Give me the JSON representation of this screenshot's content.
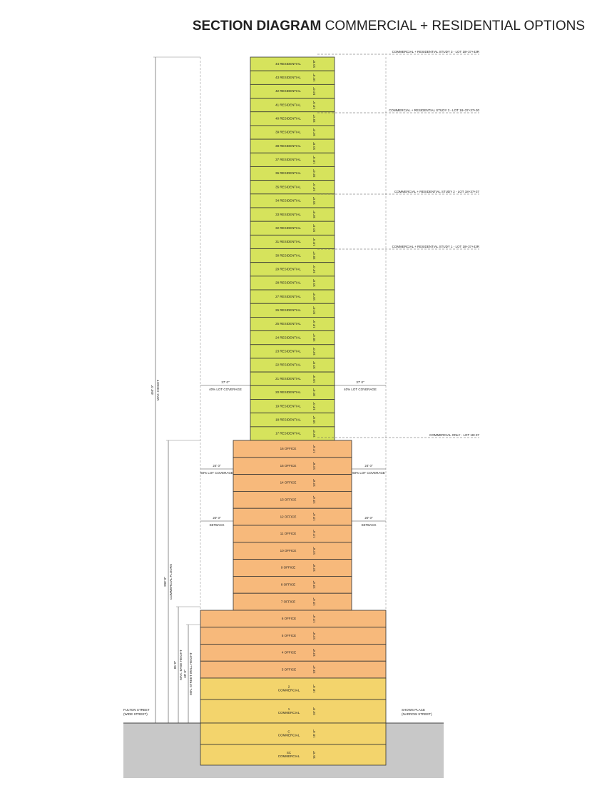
{
  "title": {
    "bold": "SECTION DIAGRAM",
    "rest": "COMMERCIAL + RESIDENTIAL OPTIONS"
  },
  "sections": [
    {
      "name": "residential",
      "floors": [
        {
          "label": [
            "44 RESIDENTIAL"
          ],
          "height": "10' 0\""
        },
        {
          "label": [
            "43 RESIDENTIAL"
          ],
          "height": "10' 0\""
        },
        {
          "label": [
            "42 RESIDENTIAL"
          ],
          "height": "10' 0\""
        },
        {
          "label": [
            "41 RESIDENTIAL"
          ],
          "height": "10' 0\""
        },
        {
          "label": [
            "40 RESIDENTIAL"
          ],
          "height": "10' 0\""
        },
        {
          "label": [
            "39 RESIDENTIAL"
          ],
          "height": "10' 0\""
        },
        {
          "label": [
            "38 RESIDENTIAL"
          ],
          "height": "10' 0\""
        },
        {
          "label": [
            "37 RESIDENTIAL"
          ],
          "height": "10' 0\""
        },
        {
          "label": [
            "36 RESIDENTIAL"
          ],
          "height": "10' 0\""
        },
        {
          "label": [
            "35 RESIDENTIAL"
          ],
          "height": "10' 0\""
        },
        {
          "label": [
            "34 RESIDENTIAL"
          ],
          "height": "10' 0\""
        },
        {
          "label": [
            "33 RESIDENTIAL"
          ],
          "height": "10' 0\""
        },
        {
          "label": [
            "32 RESIDENTIAL"
          ],
          "height": "10' 0\""
        },
        {
          "label": [
            "31 RESIDENTIAL"
          ],
          "height": "10' 0\""
        },
        {
          "label": [
            "30 RESIDENTIAL"
          ],
          "height": "10' 0\""
        },
        {
          "label": [
            "29 RESIDENTIAL"
          ],
          "height": "10' 0\""
        },
        {
          "label": [
            "28 RESIDENTIAL"
          ],
          "height": "10' 0\""
        },
        {
          "label": [
            "27 RESIDENTIAL"
          ],
          "height": "10' 0\""
        },
        {
          "label": [
            "26 RESIDENTIAL"
          ],
          "height": "10' 0\""
        },
        {
          "label": [
            "25 RESIDENTIAL"
          ],
          "height": "10' 0\""
        },
        {
          "label": [
            "24 RESIDENTIAL"
          ],
          "height": "10' 0\""
        },
        {
          "label": [
            "23 RESIDENTIAL"
          ],
          "height": "10' 0\""
        },
        {
          "label": [
            "22 RESIDENTIAL"
          ],
          "height": "10' 0\""
        },
        {
          "label": [
            "21 RESIDENTIAL"
          ],
          "height": "10' 0\""
        },
        {
          "label": [
            "20 RESIDENTIAL"
          ],
          "height": "10' 0\""
        },
        {
          "label": [
            "19 RESIDENTIAL"
          ],
          "height": "10' 0\""
        },
        {
          "label": [
            "18 RESIDENTIAL"
          ],
          "height": "10' 0\""
        },
        {
          "label": [
            "17 RESIDENTIAL"
          ],
          "height": "10' 0\""
        }
      ]
    },
    {
      "name": "office",
      "floors": [
        {
          "label": [
            "16 OFFICE"
          ],
          "height": "13' 6\""
        },
        {
          "label": [
            "15 OFFICE"
          ],
          "height": "13' 6\""
        },
        {
          "label": [
            "14 OFFICE"
          ],
          "height": "13' 6\""
        },
        {
          "label": [
            "13 OFFICE"
          ],
          "height": "13' 6\""
        },
        {
          "label": [
            "12 OFFICE"
          ],
          "height": "13' 6\""
        },
        {
          "label": [
            "11 OFFICE"
          ],
          "height": "13' 6\""
        },
        {
          "label": [
            "10 OFFICE"
          ],
          "height": "13' 6\""
        },
        {
          "label": [
            "9 OFFICE"
          ],
          "height": "13' 6\""
        },
        {
          "label": [
            "8 OFFICE"
          ],
          "height": "13' 6\""
        },
        {
          "label": [
            "7 OFFICE"
          ],
          "height": "13' 6\""
        }
      ]
    },
    {
      "name": "base",
      "floors": [
        {
          "label": [
            "6 OFFICE"
          ],
          "height": "13' 6\""
        },
        {
          "label": [
            "5 OFFICE"
          ],
          "height": "13' 6\""
        },
        {
          "label": [
            "4 OFFICE"
          ],
          "height": "13' 6\""
        },
        {
          "label": [
            "3 OFFICE"
          ],
          "height": "13' 6\""
        },
        {
          "label": [
            "2",
            "COMMERCIAL"
          ],
          "height": "18' 0\""
        },
        {
          "label": [
            "1",
            "COMMERCIAL"
          ],
          "height": "18' 0\""
        },
        {
          "label": [
            "C",
            "COMMERCIAL"
          ],
          "height": "15' 0\""
        },
        {
          "label": [
            "SC",
            "COMMERCIAL"
          ],
          "height": "15' 0\""
        }
      ]
    }
  ],
  "annotations": [
    "COMMERCIAL + RESIDENTIAL STUDY 3 - LOT 18+37+43R",
    "COMMERCIAL + RESIDENTIAL STUDY 3 - LOT 18+37+37+30",
    "COMMERCIAL + RESIDENTIAL STUDY 2 - LOT 18+37+37",
    "COMMERCIAL + RESIDENTIAL STUDY 1 - LOT 18+37+43R",
    "COMMERCIAL ONLY - LOT 18+37"
  ],
  "side_dims": [
    {
      "value": "37' 0\"",
      "note": "40% LOT COVERAGE"
    },
    {
      "value": "24' 0\"",
      "note": "60% LOT COVERAGE"
    },
    {
      "value": "20' 0\"",
      "note": "SETBACK"
    }
  ],
  "vertical_dims": [
    {
      "value": "495' 0\"",
      "note": "MAX. HEIGHT"
    },
    {
      "value": "208' 0\"",
      "note": "COMMERCIAL FLOORS"
    },
    {
      "value": "85' 0\"",
      "note": "MAX. BASE HEIGHT"
    },
    {
      "value": "60' 0\"",
      "note": "MIN. STREET WALL HEIGHT"
    }
  ],
  "streets": [
    {
      "name": "FULTON STREET",
      "note": "(WIDE STREET)"
    },
    {
      "name": "SHOWS PLACE",
      "note": "(NARROW STREET)"
    }
  ]
}
